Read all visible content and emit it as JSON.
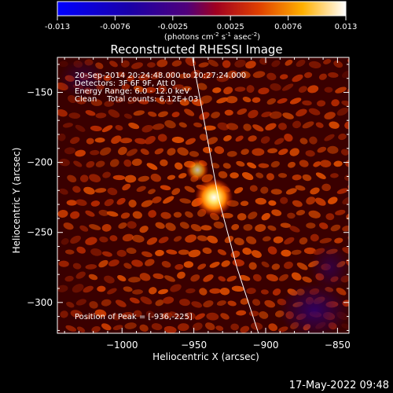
{
  "colorbar": {
    "ticks": [
      "-0.013",
      "-0.0076",
      "-0.0025",
      "0.0025",
      "0.0076",
      "0.013"
    ],
    "unit_parts": [
      "(photons cm",
      "-2",
      " s",
      "-1",
      " asec",
      "-2",
      ")"
    ]
  },
  "chart_data": {
    "type": "heatmap",
    "title": "Reconstructed RHESSI Image",
    "xlabel": "Heliocentric X (arcsec)",
    "ylabel": "Heliocentric Y (arcsec)",
    "xlim": [
      -1045,
      -842
    ],
    "ylim": [
      -322,
      -125
    ],
    "xticks": [
      -1000,
      -950,
      -900,
      -850
    ],
    "yticks": [
      -150,
      -200,
      -250,
      -300
    ],
    "x_tick_labels": [
      "−1000",
      "−950",
      "−900",
      "−850"
    ],
    "y_tick_labels": [
      "−150",
      "−200",
      "−250",
      "−300"
    ],
    "zlim": [
      -0.013,
      0.013
    ],
    "peak": {
      "x": -936,
      "y": -225
    },
    "limb_curve": [
      [
        -951,
        -125
      ],
      [
        -942,
        -175
      ],
      [
        -933,
        -225
      ],
      [
        -920,
        -275
      ],
      [
        -905,
        -322
      ]
    ],
    "annotations": [
      "20-Sep-2014 20:24:48.000 to 20:27:24.000",
      "Detectors: 3F 6F 9F, Att 0",
      "Energy Range: 6.0 - 12.0 keV",
      "Clean    Total counts: 6.12E+03",
      "Position of Peak = [-936,-225]"
    ]
  },
  "footer": {
    "timestamp": "17-May-2022 09:48"
  }
}
